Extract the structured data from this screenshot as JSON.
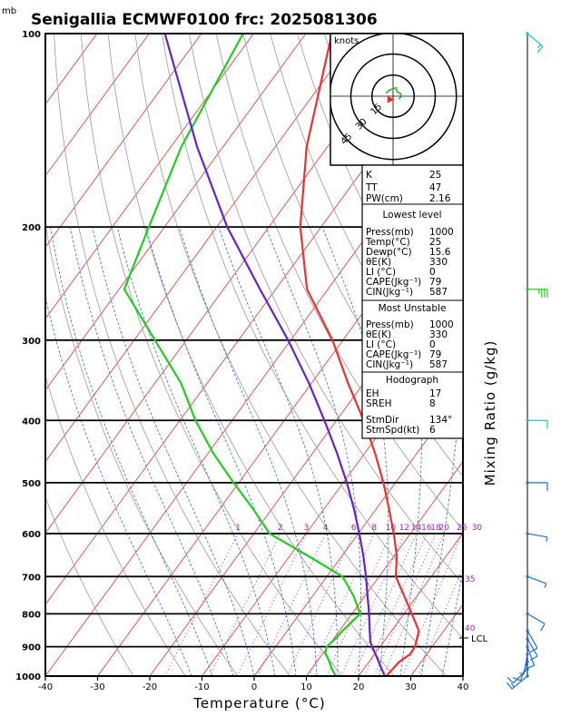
{
  "chart_data": {
    "type": "line",
    "title": "Senigallia  ECMWF0100  frc: 2025081306",
    "pressure_unit": "mb",
    "xlabel": "Temperature (°C)",
    "right_label": "Mixing Ratio (g/kg)",
    "xlim": [
      -40,
      40
    ],
    "ylim": [
      1000,
      100
    ],
    "x_ticks": [
      "-40",
      "-30",
      "-20",
      "-10",
      "0",
      "10",
      "20",
      "30",
      "40"
    ],
    "p_ticks": [
      "100",
      "200",
      "300",
      "400",
      "500",
      "600",
      "700",
      "800",
      "900",
      "1000"
    ],
    "mixing_ratio_labels": [
      "1",
      "2",
      "3",
      "4",
      "6",
      "8",
      "10",
      "12",
      "14",
      "16",
      "18",
      "20",
      "25",
      "30"
    ],
    "mixing_ratio_values": [
      1,
      2,
      3,
      4,
      6,
      8,
      10,
      12,
      14,
      16,
      18,
      20,
      25,
      30
    ],
    "theta_labels": [
      "35",
      "40"
    ],
    "lcl_label": "LCL",
    "lcl_pressure": 885,
    "series": [
      {
        "type": "temperature",
        "color": "#ee3030",
        "points": [
          [
            1000,
            25.3
          ],
          [
            950,
            25.8
          ],
          [
            925,
            26.8
          ],
          [
            900,
            26.7
          ],
          [
            850,
            25.2
          ],
          [
            800,
            21.5
          ],
          [
            750,
            17.5
          ],
          [
            700,
            13.2
          ],
          [
            650,
            10.5
          ],
          [
            600,
            6.8
          ],
          [
            550,
            2.5
          ],
          [
            500,
            -2.3
          ],
          [
            450,
            -8
          ],
          [
            400,
            -14.8
          ],
          [
            350,
            -23
          ],
          [
            300,
            -32
          ],
          [
            250,
            -44
          ],
          [
            200,
            -54
          ],
          [
            150,
            -64
          ],
          [
            100,
            -75
          ]
        ]
      },
      {
        "type": "dewpoint",
        "color": "#22cc22",
        "points": [
          [
            1000,
            15.6
          ],
          [
            970,
            13.6
          ],
          [
            950,
            12.4
          ],
          [
            920,
            10.4
          ],
          [
            900,
            9.8
          ],
          [
            870,
            10.4
          ],
          [
            850,
            10.6
          ],
          [
            800,
            11.6
          ],
          [
            750,
            7.8
          ],
          [
            700,
            3
          ],
          [
            650,
            -6.5
          ],
          [
            600,
            -17
          ],
          [
            550,
            -23.5
          ],
          [
            500,
            -31
          ],
          [
            450,
            -39
          ],
          [
            400,
            -47
          ],
          [
            350,
            -55
          ],
          [
            300,
            -66
          ],
          [
            250,
            -79
          ],
          [
            200,
            -83
          ],
          [
            150,
            -88
          ],
          [
            100,
            -92
          ]
        ]
      },
      {
        "type": "parcel",
        "color": "#6622cc",
        "points": [
          [
            1000,
            25
          ],
          [
            885,
            17.5
          ],
          [
            850,
            15.8
          ],
          [
            800,
            13.3
          ],
          [
            750,
            10.5
          ],
          [
            700,
            7.5
          ],
          [
            650,
            4.1
          ],
          [
            600,
            0.2
          ],
          [
            550,
            -4.2
          ],
          [
            500,
            -9.3
          ],
          [
            450,
            -15.3
          ],
          [
            400,
            -22.3
          ],
          [
            350,
            -30.5
          ],
          [
            300,
            -40.5
          ],
          [
            250,
            -53
          ],
          [
            200,
            -68
          ],
          [
            150,
            -85
          ],
          [
            100,
            -107
          ]
        ]
      }
    ],
    "wind_barbs": [
      {
        "p": 1000,
        "dir": 230,
        "kt": 15
      },
      {
        "p": 975,
        "dir": 225,
        "kt": 12
      },
      {
        "p": 950,
        "dir": 200,
        "kt": 10
      },
      {
        "p": 925,
        "dir": 190,
        "kt": 8
      },
      {
        "p": 900,
        "dir": 160,
        "kt": 10
      },
      {
        "p": 875,
        "dir": 150,
        "kt": 10
      },
      {
        "p": 850,
        "dir": 150,
        "kt": 12
      },
      {
        "p": 800,
        "dir": 120,
        "kt": 10
      },
      {
        "p": 700,
        "dir": 110,
        "kt": 8
      },
      {
        "p": 600,
        "dir": 100,
        "kt": 8
      },
      {
        "p": 500,
        "dir": 90,
        "kt": 10
      },
      {
        "p": 400,
        "dir": 90,
        "kt": 12
      },
      {
        "p": 250,
        "dir": 90,
        "kt": 35
      },
      {
        "p": 100,
        "dir": 130,
        "kt": 15
      }
    ],
    "hodograph": {
      "unit_label": "knots",
      "ring_labels": [
        "15",
        "30",
        "45"
      ],
      "ring_values": [
        15,
        30,
        45
      ],
      "trace_uv": [
        [
          -5,
          -2
        ],
        [
          -3,
          -4
        ],
        [
          -1,
          -5
        ],
        [
          2,
          -6
        ],
        [
          3,
          -3
        ],
        [
          5,
          -2
        ],
        [
          6,
          0
        ],
        [
          4,
          2
        ]
      ],
      "storm_uv": [
        -1.5,
        2.3
      ]
    }
  },
  "indices": {
    "k_label": "K",
    "k": "25",
    "tt_label": "TT",
    "tt": "47",
    "pw_label": "PW(cm)",
    "pw": "2.16"
  },
  "lowest_level": {
    "header": "Lowest level",
    "rows": [
      {
        "label": "Press(mb)",
        "value": "1000"
      },
      {
        "label": "Temp(°C)",
        "value": "25"
      },
      {
        "label": "Dewp(°C)",
        "value": "15.6"
      },
      {
        "label": "θE(K)",
        "value": "330"
      },
      {
        "label": "LI (°C)",
        "value": "0"
      },
      {
        "label": "CAPE(Jkg⁻¹)",
        "value": "79"
      },
      {
        "label": "CIN(Jkg⁻¹)",
        "value": "587"
      }
    ]
  },
  "most_unstable": {
    "header": "Most Unstable",
    "rows": [
      {
        "label": "Press(mb)",
        "value": "1000"
      },
      {
        "label": "θE(K)",
        "value": "330"
      },
      {
        "label": "LI (°C)",
        "value": "0"
      },
      {
        "label": "CAPE(Jkg⁻¹)",
        "value": "79"
      },
      {
        "label": "CIN(Jkg⁻¹)",
        "value": "587"
      }
    ]
  },
  "hodograph_params": {
    "header": "Hodograph",
    "rows": [
      {
        "label": "EH",
        "value": "17"
      },
      {
        "label": "SREH",
        "value": "8"
      },
      {
        "label": "",
        "value": ""
      },
      {
        "label": "StmDir",
        "value": "134°"
      },
      {
        "label": "StmSpd(kt)",
        "value": "6"
      }
    ]
  }
}
